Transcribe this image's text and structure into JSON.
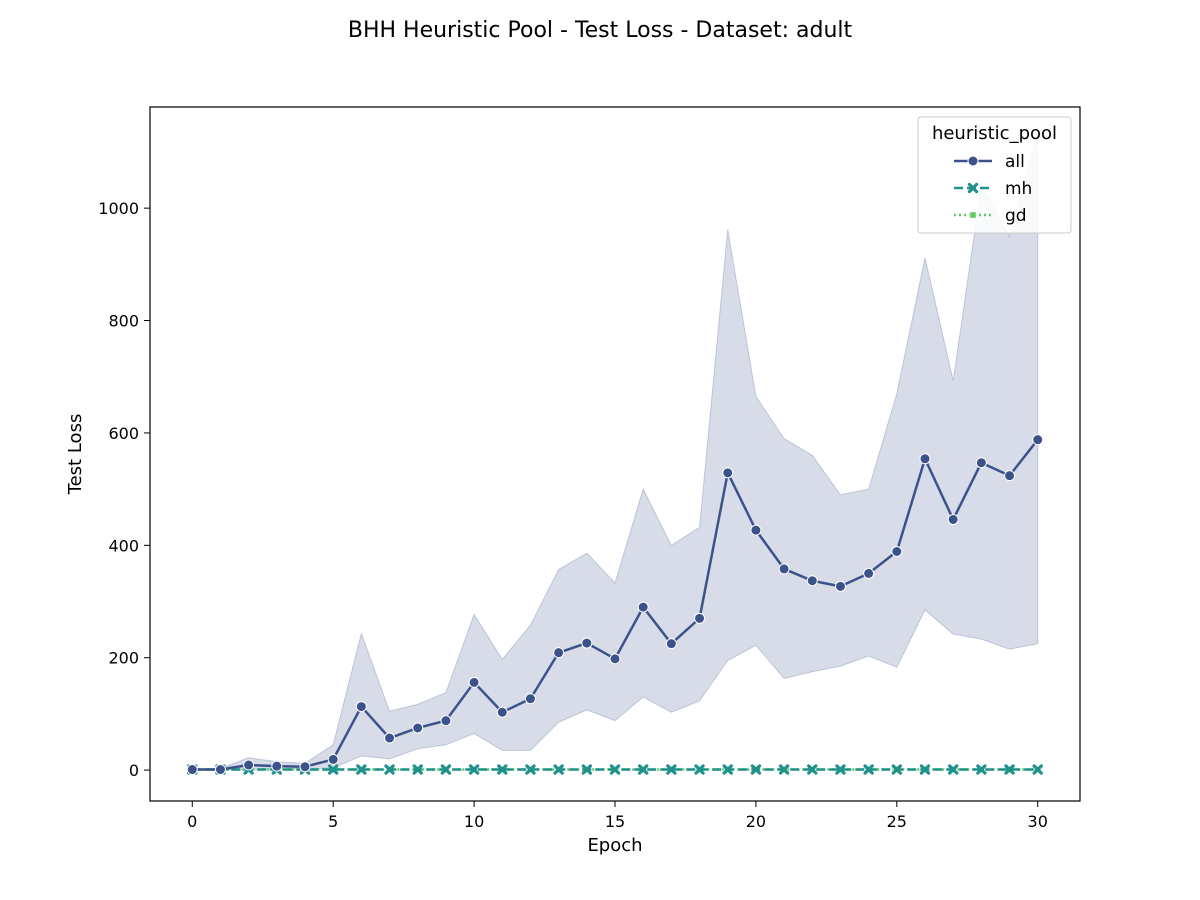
{
  "chart_data": {
    "type": "line",
    "title": "BHH Heuristic Pool - Test Loss - Dataset: adult",
    "xlabel": "Epoch",
    "ylabel": "Test Loss",
    "xlim": [
      -1.5,
      31.5
    ],
    "ylim": [
      -55,
      1180
    ],
    "x_ticks": [
      0,
      5,
      10,
      15,
      20,
      25,
      30
    ],
    "y_ticks": [
      0,
      200,
      400,
      600,
      800,
      1000
    ],
    "grid": false,
    "legend": {
      "title": "heuristic_pool",
      "placement": "top-right"
    },
    "x": [
      0,
      1,
      2,
      3,
      4,
      5,
      6,
      7,
      8,
      9,
      10,
      11,
      12,
      13,
      14,
      15,
      16,
      17,
      18,
      19,
      20,
      21,
      22,
      23,
      24,
      25,
      26,
      27,
      28,
      29,
      30
    ],
    "series": [
      {
        "name": "all",
        "color": "#3b528b",
        "line_style": "solid",
        "marker": "circle",
        "values": [
          1,
          1,
          9,
          7,
          6,
          19,
          113,
          57,
          75,
          88,
          156,
          103,
          127,
          209,
          226,
          198,
          290,
          225,
          270,
          529,
          427,
          358,
          337,
          327,
          350,
          389,
          554,
          446,
          547,
          524,
          588
        ],
        "ci_lower": [
          0,
          0,
          1,
          2,
          2,
          4,
          25,
          20,
          38,
          45,
          65,
          35,
          35,
          85,
          107,
          88,
          130,
          103,
          123,
          195,
          222,
          163,
          175,
          185,
          203,
          183,
          285,
          242,
          233,
          215,
          225
        ],
        "ci_upper": [
          2,
          3,
          22,
          15,
          12,
          45,
          243,
          105,
          117,
          138,
          277,
          197,
          258,
          357,
          386,
          333,
          500,
          400,
          432,
          962,
          665,
          590,
          560,
          490,
          500,
          670,
          912,
          693,
          1040,
          950,
          1135
        ]
      },
      {
        "name": "mh",
        "color": "#21918c",
        "line_style": "dashed",
        "marker": "x",
        "values": [
          1,
          1,
          1,
          1,
          1,
          1,
          1,
          1,
          1,
          1,
          1,
          1,
          1,
          1,
          1,
          1,
          1,
          1,
          1,
          1,
          1,
          1,
          1,
          1,
          1,
          1,
          1,
          1,
          1,
          1,
          1
        ]
      },
      {
        "name": "gd",
        "color": "#5ec962",
        "line_style": "dotted",
        "marker": "square",
        "values": [
          1,
          1,
          1,
          1,
          1,
          1,
          1,
          1,
          1,
          1,
          1,
          1,
          1,
          1,
          1,
          1,
          1,
          1,
          1,
          1,
          1,
          1,
          1,
          1,
          1,
          1,
          1,
          1,
          1,
          1,
          1
        ]
      }
    ]
  }
}
